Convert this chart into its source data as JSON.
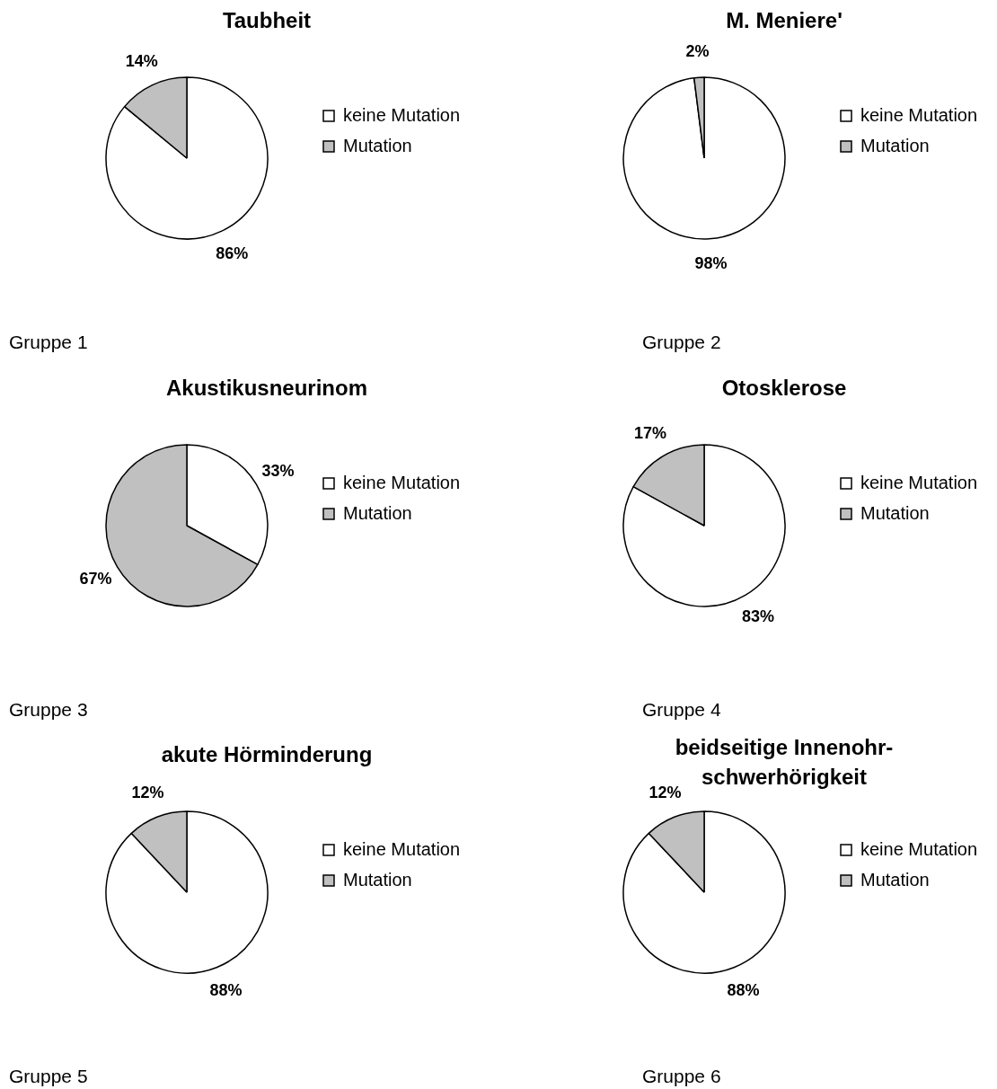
{
  "chart_data": [
    {
      "type": "pie",
      "title": "Taubheit",
      "categories": [
        "keine Mutation",
        "Mutation"
      ],
      "values": [
        86,
        14
      ],
      "colors": [
        "#ffffff",
        "#c0c0c0"
      ],
      "value_labels": [
        "86%",
        "14%"
      ],
      "legend": "right",
      "annotations": [
        "Gruppe 1"
      ]
    },
    {
      "type": "pie",
      "title": "M. Meniere'",
      "categories": [
        "keine Mutation",
        "Mutation"
      ],
      "values": [
        98,
        2
      ],
      "colors": [
        "#ffffff",
        "#c0c0c0"
      ],
      "value_labels": [
        "98%",
        "2%"
      ],
      "legend": "right",
      "annotations": [
        "Gruppe 2"
      ]
    },
    {
      "type": "pie",
      "title": "Akustikusneurinom",
      "categories": [
        "keine Mutation",
        "Mutation"
      ],
      "values": [
        33,
        67
      ],
      "colors": [
        "#ffffff",
        "#c0c0c0"
      ],
      "value_labels": [
        "33%",
        "67%"
      ],
      "legend": "right",
      "annotations": [
        "Gruppe 3"
      ]
    },
    {
      "type": "pie",
      "title": "Otosklerose",
      "categories": [
        "keine Mutation",
        "Mutation"
      ],
      "values": [
        83,
        17
      ],
      "colors": [
        "#ffffff",
        "#c0c0c0"
      ],
      "value_labels": [
        "83%",
        "17%"
      ],
      "legend": "right",
      "annotations": [
        "Gruppe 4"
      ]
    },
    {
      "type": "pie",
      "title": "akute Hörminderung",
      "categories": [
        "keine Mutation",
        "Mutation"
      ],
      "values": [
        88,
        12
      ],
      "colors": [
        "#ffffff",
        "#c0c0c0"
      ],
      "value_labels": [
        "88%",
        "12%"
      ],
      "legend": "right",
      "annotations": [
        "Gruppe 5"
      ]
    },
    {
      "type": "pie",
      "title": "beidseitige Innenohr-schwerhörigkeit",
      "categories": [
        "keine Mutation",
        "Mutation"
      ],
      "values": [
        88,
        12
      ],
      "colors": [
        "#ffffff",
        "#c0c0c0"
      ],
      "value_labels": [
        "88%",
        "12%"
      ],
      "legend": "right",
      "annotations": [
        "Gruppe 6"
      ]
    }
  ]
}
